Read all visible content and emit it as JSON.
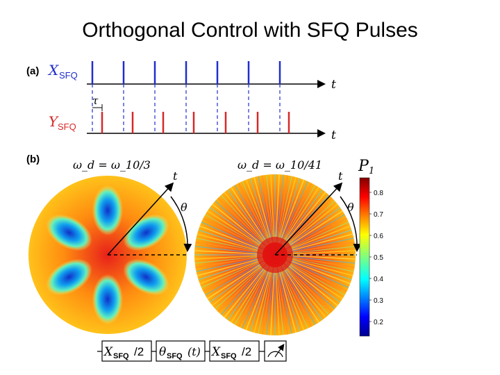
{
  "title": "Orthogonal Control with SFQ Pulses",
  "panel_a": {
    "label": "(a)",
    "x_channel": {
      "symbol": "X",
      "subscript": "SFQ",
      "color": "#1f2ecc"
    },
    "y_channel": {
      "symbol": "Y",
      "subscript": "SFQ",
      "color": "#d62828"
    },
    "time_label": "t",
    "tau_label": "τ"
  },
  "panel_b": {
    "label": "(b)",
    "left": {
      "condition": "ω_d = ω_10/3",
      "t_label": "t",
      "theta_label": "θ"
    },
    "right": {
      "condition": "ω_d = ω_10/41",
      "t_label": "t",
      "theta_label": "θ"
    }
  },
  "colorbar": {
    "title": "P",
    "title_sub": "1",
    "ticks": [
      "0.8",
      "0.7",
      "0.6",
      "0.5",
      "0.4",
      "0.3",
      "0.2"
    ],
    "colormap": "jet"
  },
  "circuit": {
    "gates": [
      {
        "main": "X",
        "sub": "SFQ",
        "tail": "/2"
      },
      {
        "main": "θ",
        "sub": "SFQ",
        "tail": "(t)"
      },
      {
        "main": "X",
        "sub": "SFQ",
        "tail": "/2"
      }
    ],
    "measurement": "meter-icon"
  }
}
